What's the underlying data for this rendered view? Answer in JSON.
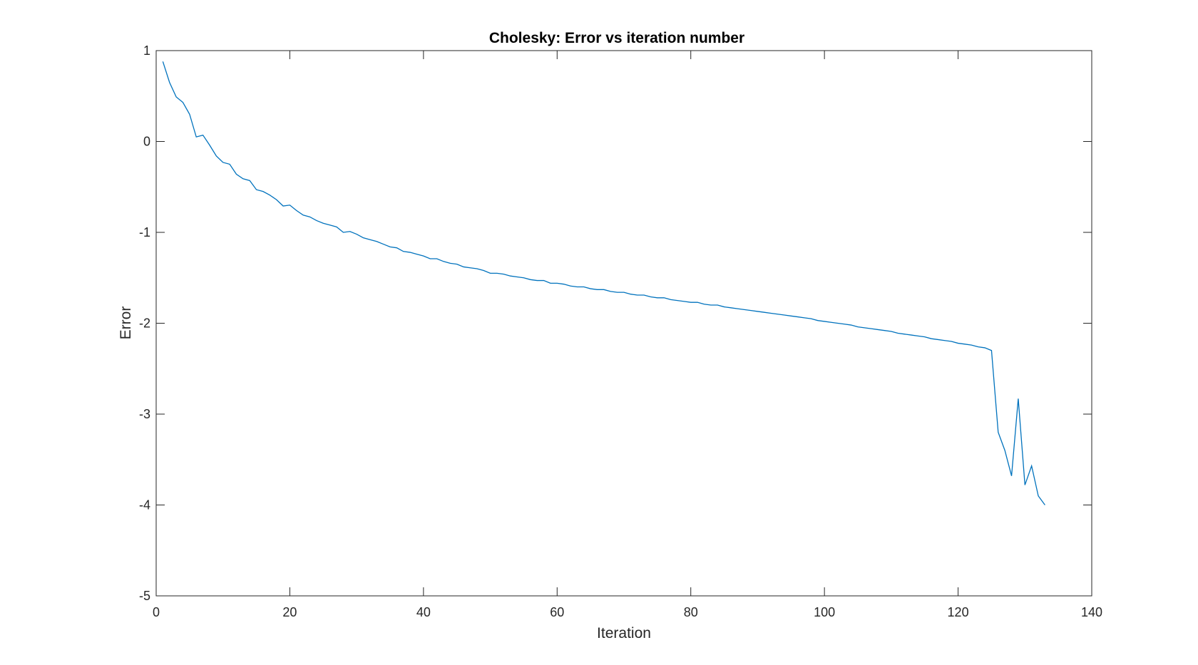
{
  "chart_data": {
    "type": "line",
    "title": "Cholesky: Error vs iteration number",
    "xlabel": "Iteration",
    "ylabel": "Error",
    "xlim": [
      0,
      140
    ],
    "ylim": [
      -5,
      1
    ],
    "xticks": [
      "0",
      "20",
      "40",
      "60",
      "80",
      "100",
      "120",
      "140"
    ],
    "yticks": [
      "1",
      "0",
      "-1",
      "-2",
      "-3",
      "-4",
      "-5"
    ],
    "grid": false,
    "legend": "none",
    "series": [
      {
        "color": "#0072BD",
        "x": [
          1,
          2,
          3,
          4,
          5,
          6,
          7,
          8,
          9,
          10,
          11,
          12,
          13,
          14,
          15,
          16,
          17,
          18,
          19,
          20,
          21,
          22,
          23,
          24,
          25,
          26,
          27,
          28,
          29,
          30,
          31,
          32,
          33,
          34,
          35,
          36,
          37,
          38,
          39,
          40,
          41,
          42,
          43,
          44,
          45,
          46,
          47,
          48,
          49,
          50,
          51,
          52,
          53,
          54,
          55,
          56,
          57,
          58,
          59,
          60,
          61,
          62,
          63,
          64,
          65,
          66,
          67,
          68,
          69,
          70,
          71,
          72,
          73,
          74,
          75,
          76,
          77,
          78,
          79,
          80,
          81,
          82,
          83,
          84,
          85,
          86,
          87,
          88,
          89,
          90,
          91,
          92,
          93,
          94,
          95,
          96,
          97,
          98,
          99,
          100,
          101,
          102,
          103,
          104,
          105,
          106,
          107,
          108,
          109,
          110,
          111,
          112,
          113,
          114,
          115,
          116,
          117,
          118,
          119,
          120,
          121,
          122,
          123,
          124,
          125,
          126,
          127,
          128,
          129,
          130,
          131,
          132,
          133
        ],
        "y": [
          0.88,
          0.65,
          0.49,
          0.43,
          0.3,
          0.05,
          0.07,
          -0.04,
          -0.16,
          -0.23,
          -0.25,
          -0.36,
          -0.41,
          -0.43,
          -0.53,
          -0.55,
          -0.59,
          -0.64,
          -0.71,
          -0.7,
          -0.76,
          -0.81,
          -0.83,
          -0.87,
          -0.9,
          -0.92,
          -0.94,
          -1.0,
          -0.99,
          -1.02,
          -1.06,
          -1.08,
          -1.1,
          -1.13,
          -1.16,
          -1.17,
          -1.21,
          -1.22,
          -1.24,
          -1.26,
          -1.29,
          -1.29,
          -1.32,
          -1.34,
          -1.35,
          -1.38,
          -1.39,
          -1.4,
          -1.42,
          -1.45,
          -1.45,
          -1.46,
          -1.48,
          -1.49,
          -1.5,
          -1.52,
          -1.53,
          -1.53,
          -1.56,
          -1.56,
          -1.57,
          -1.59,
          -1.6,
          -1.6,
          -1.62,
          -1.63,
          -1.63,
          -1.65,
          -1.66,
          -1.66,
          -1.68,
          -1.69,
          -1.69,
          -1.71,
          -1.72,
          -1.72,
          -1.74,
          -1.75,
          -1.76,
          -1.77,
          -1.77,
          -1.79,
          -1.8,
          -1.8,
          -1.82,
          -1.83,
          -1.84,
          -1.85,
          -1.86,
          -1.87,
          -1.88,
          -1.89,
          -1.9,
          -1.91,
          -1.92,
          -1.93,
          -1.94,
          -1.95,
          -1.97,
          -1.98,
          -1.99,
          -2.0,
          -2.01,
          -2.02,
          -2.04,
          -2.05,
          -2.06,
          -2.07,
          -2.08,
          -2.09,
          -2.11,
          -2.12,
          -2.13,
          -2.14,
          -2.15,
          -2.17,
          -2.18,
          -2.19,
          -2.2,
          -2.22,
          -2.23,
          -2.24,
          -2.26,
          -2.27,
          -2.3,
          -3.2,
          -3.4,
          -3.68,
          -2.83,
          -3.78,
          -3.57,
          -3.9,
          -4.0
        ]
      }
    ]
  }
}
